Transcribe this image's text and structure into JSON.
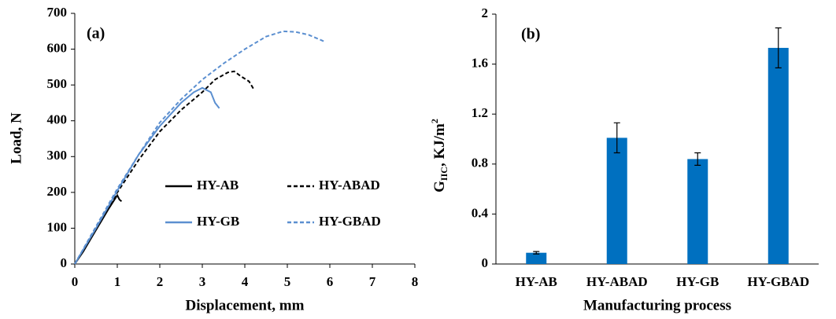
{
  "chart_data": [
    {
      "type": "line",
      "panel_label": "(a)",
      "xlabel": "Displacement, mm",
      "ylabel": "Load, N",
      "xlim": [
        0,
        8
      ],
      "xticks": [
        0,
        1,
        2,
        3,
        4,
        5,
        6,
        7,
        8
      ],
      "ylim": [
        0,
        700
      ],
      "yticks": [
        0,
        100,
        200,
        300,
        400,
        500,
        600,
        700
      ],
      "grid": false,
      "series": [
        {
          "name": "HY-AB",
          "color": "#000000",
          "dashed": false,
          "x": [
            0,
            0.2,
            0.4,
            0.6,
            0.8,
            1.0,
            1.05,
            1.1
          ],
          "values": [
            0,
            35,
            75,
            115,
            155,
            192,
            180,
            175
          ]
        },
        {
          "name": "HY-ABAD",
          "color": "#000000",
          "dashed": true,
          "x": [
            0,
            0.5,
            1.0,
            1.5,
            2.0,
            2.5,
            3.0,
            3.3,
            3.6,
            3.75,
            3.9,
            4.1,
            4.2
          ],
          "values": [
            0,
            100,
            200,
            290,
            370,
            430,
            480,
            515,
            535,
            538,
            525,
            510,
            490
          ]
        },
        {
          "name": "HY-GB",
          "color": "#5b8fd0",
          "dashed": false,
          "x": [
            0,
            0.5,
            1.0,
            1.5,
            2.0,
            2.5,
            2.8,
            3.0,
            3.2,
            3.3,
            3.4
          ],
          "values": [
            0,
            100,
            205,
            305,
            385,
            450,
            480,
            492,
            480,
            450,
            435
          ]
        },
        {
          "name": "HY-GBAD",
          "color": "#5b8fd0",
          "dashed": true,
          "x": [
            0,
            0.5,
            1.0,
            1.5,
            2.0,
            2.5,
            3.0,
            3.5,
            4.0,
            4.5,
            4.9,
            5.2,
            5.5,
            5.9
          ],
          "values": [
            0,
            105,
            210,
            305,
            395,
            460,
            515,
            560,
            600,
            635,
            650,
            648,
            640,
            620
          ]
        }
      ]
    },
    {
      "type": "bar",
      "panel_label": "(b)",
      "xlabel": "Manufacturing process",
      "ylabel": [
        "G",
        "IIC",
        ", KJ/m",
        "2"
      ],
      "categories": [
        "HY-AB",
        "HY-ABAD",
        "HY-GB",
        "HY-GBAD"
      ],
      "values": [
        0.09,
        1.01,
        0.84,
        1.73
      ],
      "errors": [
        0.01,
        0.12,
        0.05,
        0.16
      ],
      "color": "#0070c0",
      "ylim": [
        0,
        2
      ],
      "yticks": [
        0,
        0.4,
        0.8,
        1.2,
        1.6,
        2
      ],
      "grid": false
    }
  ]
}
